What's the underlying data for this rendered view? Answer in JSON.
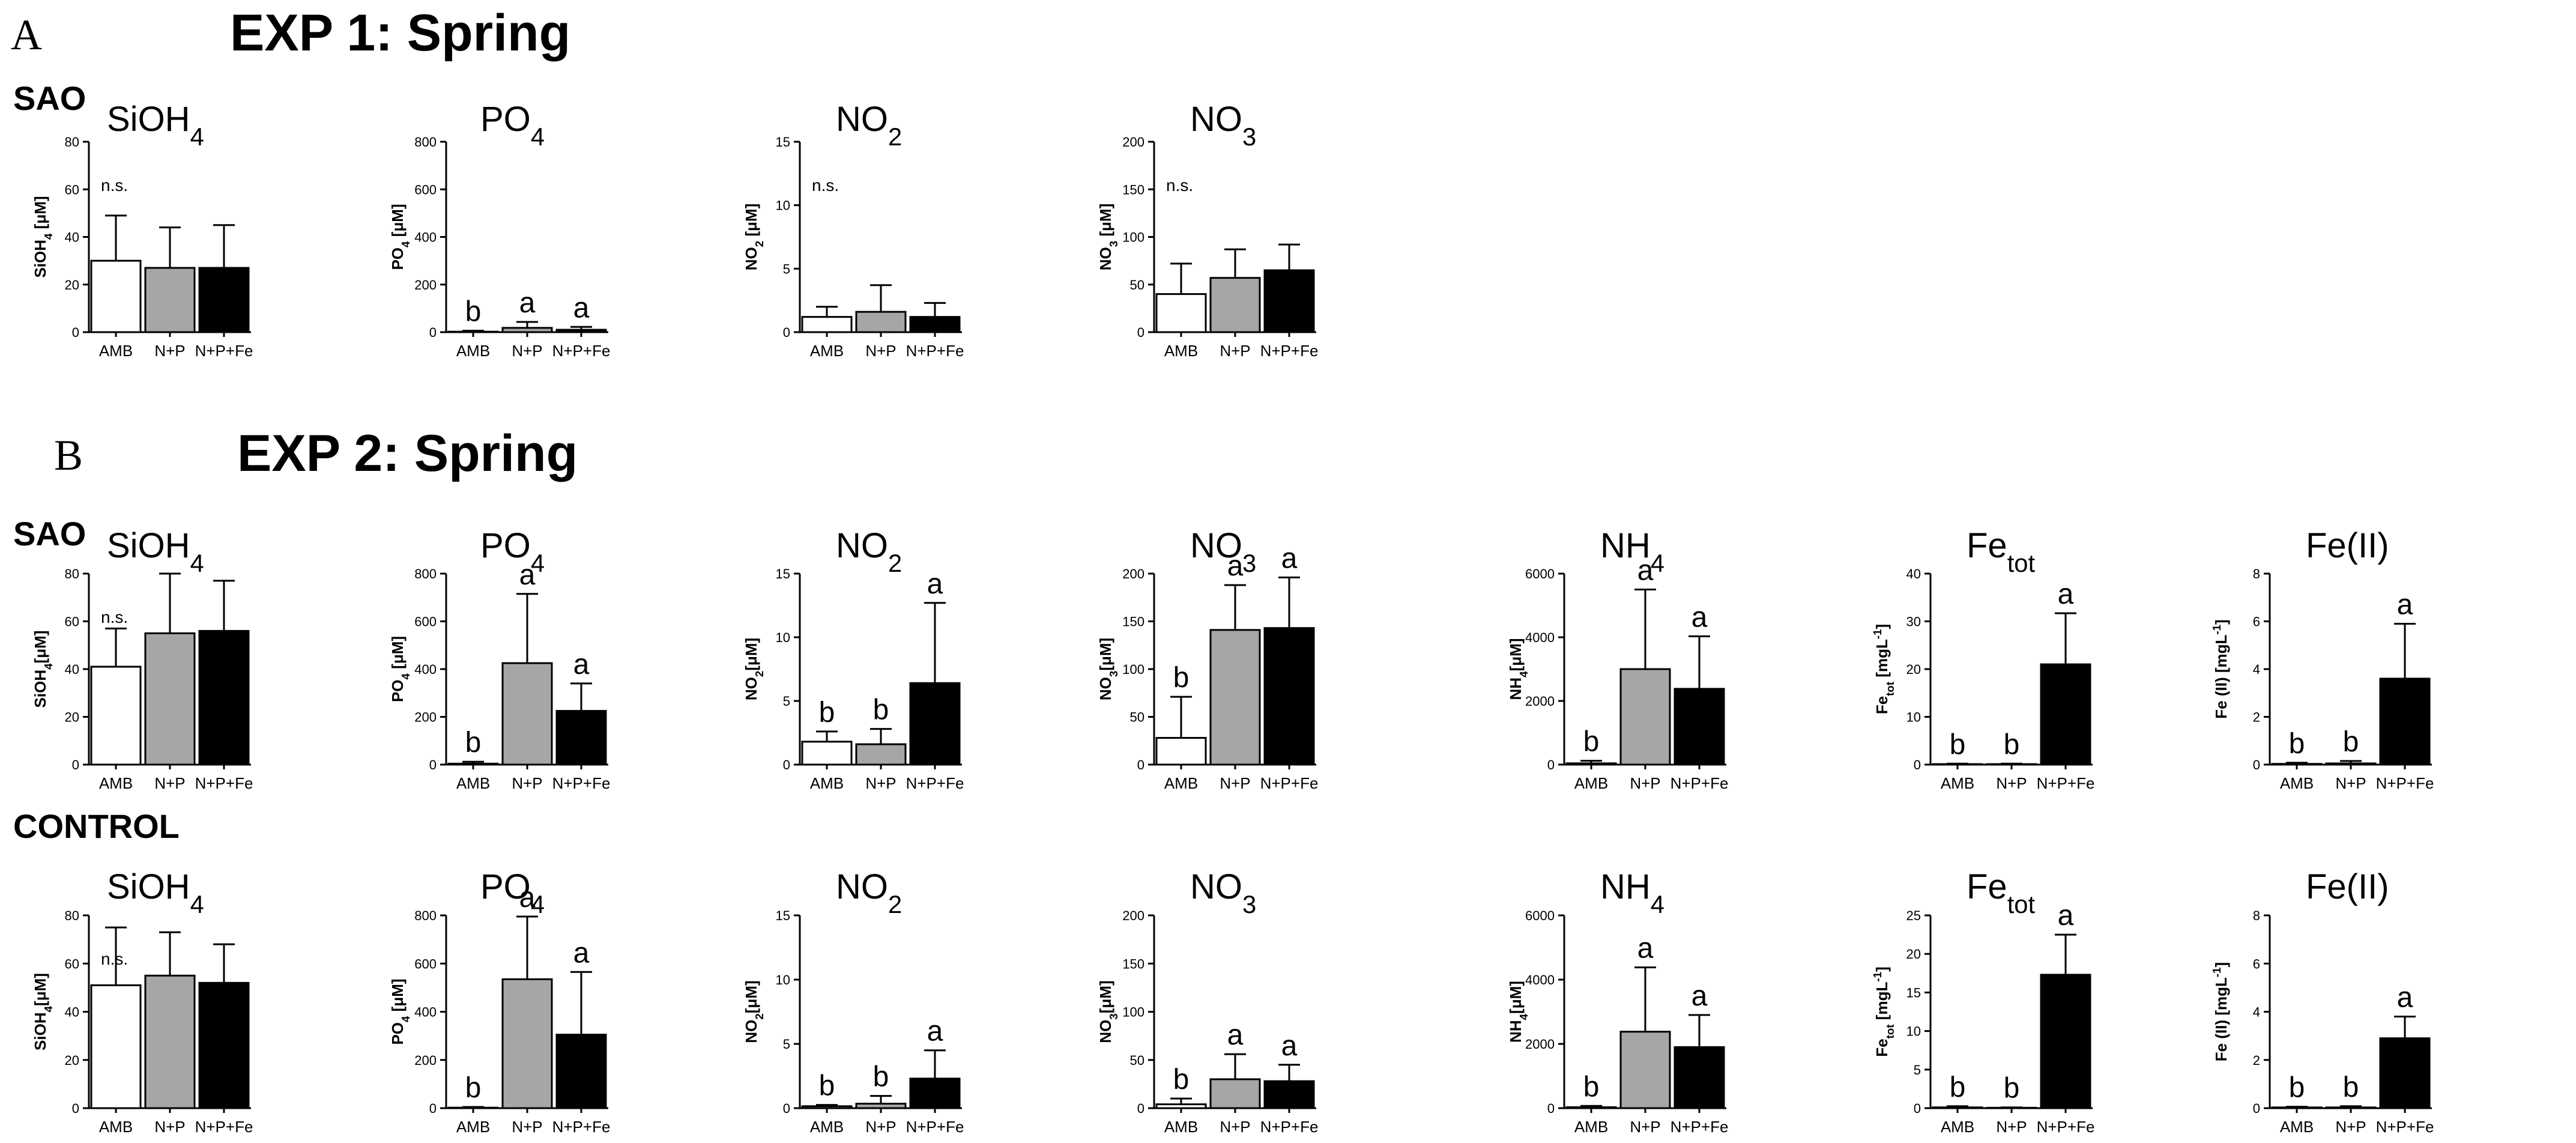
{
  "figure": {
    "panel_a": {
      "letter": "A",
      "title": "EXP 1: Spring"
    },
    "panel_b": {
      "letter": "B",
      "title": "EXP 2: Spring"
    },
    "rows": {
      "exp1": "SAO",
      "exp2_sao": "SAO",
      "exp2_control": "CONTROL"
    }
  },
  "colors": {
    "AMB": "#ffffff",
    "N+P": "#a6a6a6",
    "N+P+Fe": "#000000",
    "axis": "#000000"
  },
  "chart_data": [
    {
      "type": "bar",
      "row": "exp1",
      "col": 0,
      "title": "SiOH",
      "title_sub": "4",
      "ylabel": "SiOH",
      "ylabel_sub": "4",
      "ylabel_tail": " [μM]",
      "ylim": [
        0,
        80
      ],
      "yticks": [
        "0",
        "20",
        "40",
        "60",
        "80"
      ],
      "categories": [
        "AMB",
        "N+P",
        "N+P+Fe"
      ],
      "values": [
        30,
        27,
        27
      ],
      "errors": [
        19,
        17,
        18
      ],
      "letters": [],
      "note": "n.s."
    },
    {
      "type": "bar",
      "row": "exp1",
      "col": 1,
      "title": "PO",
      "title_sub": "4",
      "ylabel": "PO",
      "ylabel_sub": "4",
      "ylabel_tail": " [μM]",
      "ylim": [
        0,
        800
      ],
      "yticks": [
        "0",
        "200",
        "400",
        "600",
        "800"
      ],
      "categories": [
        "AMB",
        "N+P",
        "N+P+Fe"
      ],
      "values": [
        2,
        18,
        10
      ],
      "errors": [
        4,
        25,
        12
      ],
      "letters": [
        "b",
        "a",
        "a"
      ],
      "note": ""
    },
    {
      "type": "bar",
      "row": "exp1",
      "col": 2,
      "title": "NO",
      "title_sub": "2",
      "ylabel": "NO",
      "ylabel_sub": "2",
      "ylabel_tail": " [μM]",
      "ylim": [
        0,
        15
      ],
      "yticks": [
        "0",
        "5",
        "10",
        "15"
      ],
      "categories": [
        "AMB",
        "N+P",
        "N+P+Fe"
      ],
      "values": [
        1.2,
        1.6,
        1.2
      ],
      "errors": [
        0.8,
        2.1,
        1.1
      ],
      "letters": [],
      "note": "n.s."
    },
    {
      "type": "bar",
      "row": "exp1",
      "col": 3,
      "title": "NO",
      "title_sub": "3",
      "ylabel": "NO",
      "ylabel_sub": "3",
      "ylabel_tail": " [μM]",
      "ylim": [
        0,
        200
      ],
      "yticks": [
        "0",
        "50",
        "100",
        "150",
        "200"
      ],
      "categories": [
        "AMB",
        "N+P",
        "N+P+Fe"
      ],
      "values": [
        40,
        57,
        65
      ],
      "errors": [
        32,
        30,
        27
      ],
      "letters": [],
      "note": "n.s."
    },
    {
      "type": "bar",
      "row": "exp2_sao",
      "col": 0,
      "title": "SiOH",
      "title_sub": "4",
      "ylabel": "SiOH",
      "ylabel_sub": "4",
      "ylabel_tail": "[μM]",
      "ylim": [
        0,
        80
      ],
      "yticks": [
        "0",
        "20",
        "40",
        "60",
        "80"
      ],
      "categories": [
        "AMB",
        "N+P",
        "N+P+Fe"
      ],
      "values": [
        41,
        55,
        56
      ],
      "errors": [
        16,
        25,
        21
      ],
      "letters": [],
      "note": "n.s."
    },
    {
      "type": "bar",
      "row": "exp2_sao",
      "col": 1,
      "title": "PO",
      "title_sub": "4",
      "ylabel": "PO",
      "ylabel_sub": "4",
      "ylabel_tail": " [μM]",
      "ylim": [
        0,
        800
      ],
      "yticks": [
        "0",
        "200",
        "400",
        "600",
        "800"
      ],
      "categories": [
        "AMB",
        "N+P",
        "N+P+Fe"
      ],
      "values": [
        4,
        425,
        225
      ],
      "errors": [
        8,
        290,
        115
      ],
      "letters": [
        "b",
        "a",
        "a"
      ],
      "note": ""
    },
    {
      "type": "bar",
      "row": "exp2_sao",
      "col": 2,
      "title": "NO",
      "title_sub": "2",
      "ylabel": "NO",
      "ylabel_sub": "2",
      "ylabel_tail": "[μM]",
      "ylim": [
        0,
        15
      ],
      "yticks": [
        "0",
        "5",
        "10",
        "15"
      ],
      "categories": [
        "AMB",
        "N+P",
        "N+P+Fe"
      ],
      "values": [
        1.8,
        1.6,
        6.4
      ],
      "errors": [
        0.8,
        1.2,
        6.3
      ],
      "letters": [
        "b",
        "b",
        "a"
      ],
      "note": ""
    },
    {
      "type": "bar",
      "row": "exp2_sao",
      "col": 3,
      "title": "NO",
      "title_sub": "3",
      "ylabel": "NO",
      "ylabel_sub": "3",
      "ylabel_tail": "[μM]",
      "ylim": [
        0,
        200
      ],
      "yticks": [
        "0",
        "50",
        "100",
        "150",
        "200"
      ],
      "categories": [
        "AMB",
        "N+P",
        "N+P+Fe"
      ],
      "values": [
        28,
        141,
        143
      ],
      "errors": [
        43,
        47,
        53
      ],
      "letters": [
        "b",
        "a",
        "a"
      ],
      "note": ""
    },
    {
      "type": "bar",
      "row": "exp2_sao",
      "col": 4,
      "title": "NH",
      "title_sub": "4",
      "ylabel": "NH",
      "ylabel_sub": "4",
      "ylabel_tail": "[μM]",
      "ylim": [
        0,
        6000
      ],
      "yticks": [
        "0",
        "2000",
        "4000",
        "6000"
      ],
      "categories": [
        "AMB",
        "N+P",
        "N+P+Fe"
      ],
      "values": [
        40,
        3000,
        2380
      ],
      "errors": [
        80,
        2500,
        1650
      ],
      "letters": [
        "b",
        "a",
        "a"
      ],
      "note": ""
    },
    {
      "type": "bar",
      "row": "exp2_sao",
      "col": 5,
      "title": "Fe",
      "title_sub": "tot",
      "ylabel": "Fe",
      "ylabel_sub": "tot",
      "ylabel_tail": " [mgL",
      "ylabel_sup": "-1",
      "ylabel_end": "]",
      "ylim": [
        0,
        40
      ],
      "yticks": [
        "0",
        "10",
        "20",
        "30",
        "40"
      ],
      "categories": [
        "AMB",
        "N+P",
        "N+P+Fe"
      ],
      "values": [
        0.1,
        0.1,
        21
      ],
      "errors": [
        0.1,
        0.1,
        10.7
      ],
      "letters": [
        "b",
        "b",
        "a"
      ],
      "note": ""
    },
    {
      "type": "bar",
      "row": "exp2_sao",
      "col": 6,
      "title": "Fe(II)",
      "title_sub": "",
      "ylabel": "Fe (II) [mgL",
      "ylabel_sub": "",
      "ylabel_tail": "",
      "ylabel_sup": "-1",
      "ylabel_end": "]",
      "ylim": [
        0,
        8
      ],
      "yticks": [
        "0",
        "2",
        "4",
        "6",
        "8"
      ],
      "categories": [
        "AMB",
        "N+P",
        "N+P+Fe"
      ],
      "values": [
        0.03,
        0.05,
        3.6
      ],
      "errors": [
        0.05,
        0.1,
        2.3
      ],
      "letters": [
        "b",
        "b",
        "a"
      ],
      "note": ""
    },
    {
      "type": "bar",
      "row": "exp2_control",
      "col": 0,
      "title": "SiOH",
      "title_sub": "4",
      "ylabel": "SiOH",
      "ylabel_sub": "4",
      "ylabel_tail": "[μM]",
      "ylim": [
        0,
        80
      ],
      "yticks": [
        "0",
        "20",
        "40",
        "60",
        "80"
      ],
      "categories": [
        "AMB",
        "N+P",
        "N+P+Fe"
      ],
      "values": [
        51,
        55,
        52
      ],
      "errors": [
        24,
        18,
        16
      ],
      "letters": [],
      "note": "n.s."
    },
    {
      "type": "bar",
      "row": "exp2_control",
      "col": 1,
      "title": "PO",
      "title_sub": "4",
      "ylabel": "PO",
      "ylabel_sub": "4",
      "ylabel_tail": " [μM]",
      "ylim": [
        0,
        800
      ],
      "yticks": [
        "0",
        "200",
        "400",
        "600",
        "800"
      ],
      "categories": [
        "AMB",
        "N+P",
        "N+P+Fe"
      ],
      "values": [
        2,
        535,
        305
      ],
      "errors": [
        3,
        260,
        260
      ],
      "letters": [
        "b",
        "a",
        "a"
      ],
      "note": ""
    },
    {
      "type": "bar",
      "row": "exp2_control",
      "col": 2,
      "title": "NO",
      "title_sub": "2",
      "ylabel": "NO",
      "ylabel_sub": "2",
      "ylabel_tail": "[μM]",
      "ylim": [
        0,
        15
      ],
      "yticks": [
        "0",
        "5",
        "10",
        "15"
      ],
      "categories": [
        "AMB",
        "N+P",
        "N+P+Fe"
      ],
      "values": [
        0.15,
        0.35,
        2.3
      ],
      "errors": [
        0.1,
        0.6,
        2.2
      ],
      "letters": [
        "b",
        "b",
        "a"
      ],
      "note": ""
    },
    {
      "type": "bar",
      "row": "exp2_control",
      "col": 3,
      "title": "NO",
      "title_sub": "3",
      "ylabel": "NO",
      "ylabel_sub": "3",
      "ylabel_tail": "[μM]",
      "ylim": [
        0,
        200
      ],
      "yticks": [
        "0",
        "50",
        "100",
        "150",
        "200"
      ],
      "categories": [
        "AMB",
        "N+P",
        "N+P+Fe"
      ],
      "values": [
        4,
        30,
        28
      ],
      "errors": [
        6,
        26,
        17
      ],
      "letters": [
        "b",
        "a",
        "a"
      ],
      "note": ""
    },
    {
      "type": "bar",
      "row": "exp2_control",
      "col": 4,
      "title": "NH",
      "title_sub": "4",
      "ylabel": "NH",
      "ylabel_sub": "4",
      "ylabel_tail": "[μM]",
      "ylim": [
        0,
        6000
      ],
      "yticks": [
        "0",
        "2000",
        "4000",
        "6000"
      ],
      "categories": [
        "AMB",
        "N+P",
        "N+P+Fe"
      ],
      "values": [
        30,
        2380,
        1900
      ],
      "errors": [
        40,
        2000,
        1000
      ],
      "letters": [
        "b",
        "a",
        "a"
      ],
      "note": ""
    },
    {
      "type": "bar",
      "row": "exp2_control",
      "col": 5,
      "title": "Fe",
      "title_sub": "tot",
      "ylabel": "Fe",
      "ylabel_sub": "tot",
      "ylabel_tail": " [mgL",
      "ylabel_sup": "-1",
      "ylabel_end": "]",
      "ylim": [
        0,
        25
      ],
      "yticks": [
        "0",
        "5",
        "10",
        "15",
        "20",
        "25"
      ],
      "categories": [
        "AMB",
        "N+P",
        "N+P+Fe"
      ],
      "values": [
        0.1,
        0.05,
        17.3
      ],
      "errors": [
        0.15,
        0.05,
        5.2
      ],
      "letters": [
        "b",
        "b",
        "a"
      ],
      "note": ""
    },
    {
      "type": "bar",
      "row": "exp2_control",
      "col": 6,
      "title": "Fe(II)",
      "title_sub": "",
      "ylabel": "Fe (II) [mgL",
      "ylabel_sub": "",
      "ylabel_tail": "",
      "ylabel_sup": "-1",
      "ylabel_end": "]",
      "ylim": [
        0,
        8
      ],
      "yticks": [
        "0",
        "2",
        "4",
        "6",
        "8"
      ],
      "categories": [
        "AMB",
        "N+P",
        "N+P+Fe"
      ],
      "values": [
        0.03,
        0.03,
        2.9
      ],
      "errors": [
        0.03,
        0.05,
        0.9
      ],
      "letters": [
        "b",
        "b",
        "a"
      ],
      "note": ""
    }
  ]
}
